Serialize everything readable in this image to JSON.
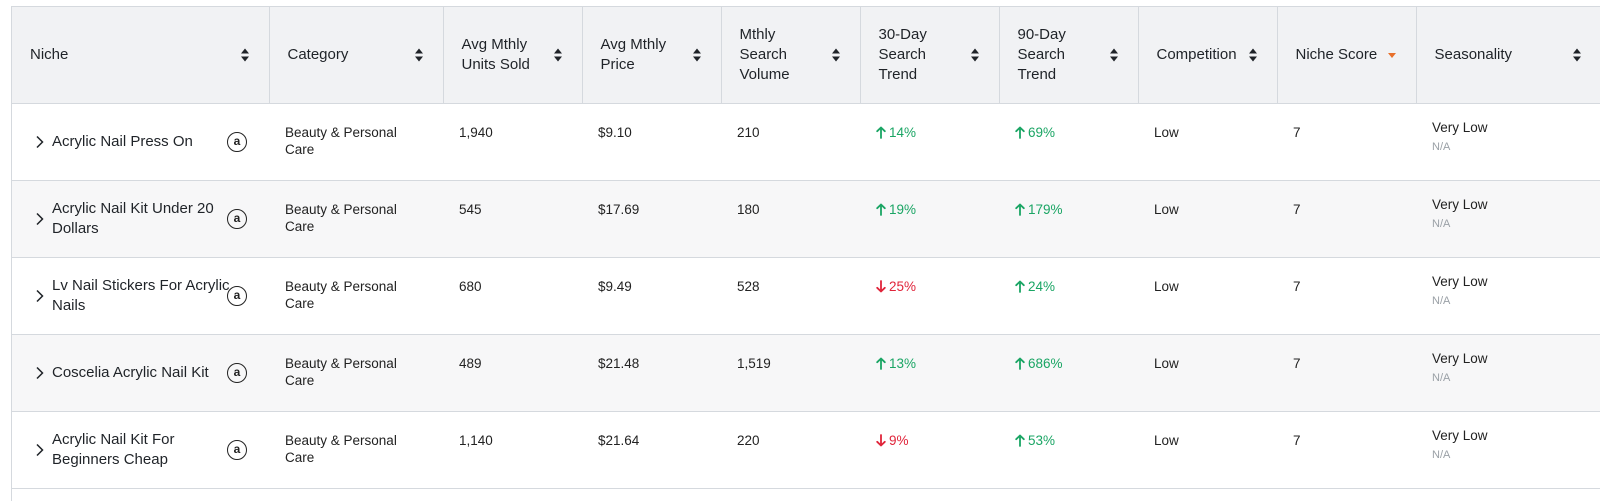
{
  "table": {
    "columns": [
      {
        "label": "Niche",
        "sort": "both"
      },
      {
        "label": "Category",
        "sort": "both"
      },
      {
        "label": "Avg Mthly Units Sold",
        "sort": "both"
      },
      {
        "label": "Avg Mthly Price",
        "sort": "both"
      },
      {
        "label": "Mthly Search Volume",
        "sort": "both"
      },
      {
        "label": "30-Day Search Trend",
        "sort": "both"
      },
      {
        "label": "90-Day Search Trend",
        "sort": "both"
      },
      {
        "label": "Competition",
        "sort": "both"
      },
      {
        "label": "Niche Score",
        "sort": "desc"
      },
      {
        "label": "Seasonality",
        "sort": "both"
      }
    ],
    "rows": [
      {
        "niche": "Acrylic Nail Press On",
        "category": "Beauty & Personal Care",
        "units": "1,940",
        "price": "$9.10",
        "volume": "210",
        "trend30": {
          "value": "14%",
          "dir": "up"
        },
        "trend90": {
          "value": "69%",
          "dir": "up"
        },
        "competition": "Low",
        "score": "7",
        "seasonality": "Very Low",
        "seasonality_sub": "N/A"
      },
      {
        "niche": "Acrylic Nail Kit Under 20 Dollars",
        "category": "Beauty & Personal Care",
        "units": "545",
        "price": "$17.69",
        "volume": "180",
        "trend30": {
          "value": "19%",
          "dir": "up"
        },
        "trend90": {
          "value": "179%",
          "dir": "up"
        },
        "competition": "Low",
        "score": "7",
        "seasonality": "Very Low",
        "seasonality_sub": "N/A"
      },
      {
        "niche": "Lv Nail Stickers For Acrylic Nails",
        "category": "Beauty & Personal Care",
        "units": "680",
        "price": "$9.49",
        "volume": "528",
        "trend30": {
          "value": "25%",
          "dir": "down"
        },
        "trend90": {
          "value": "24%",
          "dir": "up"
        },
        "competition": "Low",
        "score": "7",
        "seasonality": "Very Low",
        "seasonality_sub": "N/A"
      },
      {
        "niche": "Coscelia Acrylic Nail Kit",
        "category": "Beauty & Personal Care",
        "units": "489",
        "price": "$21.48",
        "volume": "1,519",
        "trend30": {
          "value": "13%",
          "dir": "up"
        },
        "trend90": {
          "value": "686%",
          "dir": "up"
        },
        "competition": "Low",
        "score": "7",
        "seasonality": "Very Low",
        "seasonality_sub": "N/A"
      },
      {
        "niche": "Acrylic Nail Kit For Beginners Cheap",
        "category": "Beauty & Personal Care",
        "units": "1,140",
        "price": "$21.64",
        "volume": "220",
        "trend30": {
          "value": "9%",
          "dir": "down"
        },
        "trend90": {
          "value": "53%",
          "dir": "up"
        },
        "competition": "Low",
        "score": "7",
        "seasonality": "Very Low",
        "seasonality_sub": "N/A"
      }
    ],
    "row_icon": "amazon-icon",
    "row_icon_glyph": "a",
    "colors": {
      "up": "#1aa564",
      "down": "#e0243a",
      "sort_active": "#e8702a",
      "header_bg": "#f1f2f4"
    }
  }
}
